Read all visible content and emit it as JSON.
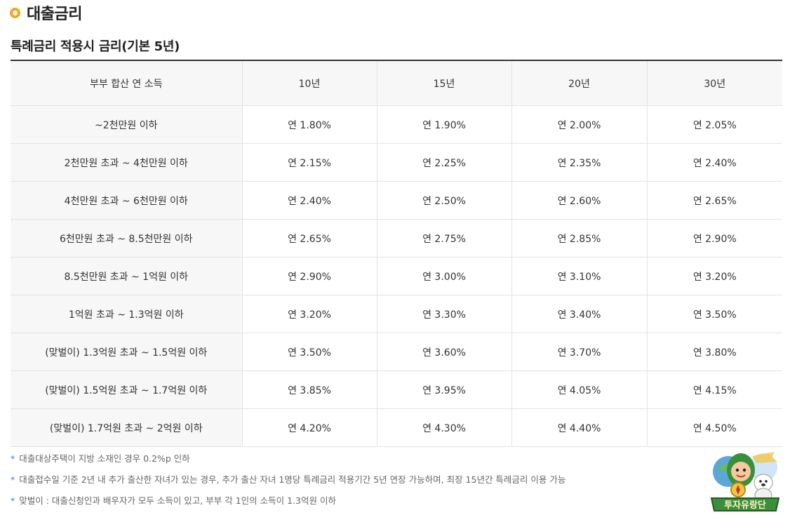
{
  "header": {
    "title": "대출금리",
    "subtitle": "특례금리 적용시 금리(기본 5년)"
  },
  "table": {
    "columns": [
      "부부 합산 연 소득",
      "10년",
      "15년",
      "20년",
      "30년"
    ],
    "rows": [
      [
        "~2천만원 이하",
        "연 1.80%",
        "연 1.90%",
        "연 2.00%",
        "연 2.05%"
      ],
      [
        "2천만원 초과 ~ 4천만원 이하",
        "연 2.15%",
        "연 2.25%",
        "연 2.35%",
        "연 2.40%"
      ],
      [
        "4천만원 초과 ~ 6천만원 이하",
        "연 2.40%",
        "연 2.50%",
        "연 2.60%",
        "연 2.65%"
      ],
      [
        "6천만원 초과 ~ 8.5천만원 이하",
        "연 2.65%",
        "연 2.75%",
        "연 2.85%",
        "연 2.90%"
      ],
      [
        "8.5천만원 초과 ~ 1억원 이하",
        "연 2.90%",
        "연 3.00%",
        "연 3.10%",
        "연 3.20%"
      ],
      [
        "1억원 초과 ~ 1.3억원 이하",
        "연 3.20%",
        "연 3.30%",
        "연 3.40%",
        "연 3.50%"
      ],
      [
        "(맞벌이) 1.3억원 초과 ~ 1.5억원 이하",
        "연 3.50%",
        "연 3.60%",
        "연 3.70%",
        "연 3.80%"
      ],
      [
        "(맞벌이) 1.5억원 초과 ~ 1.7억원 이하",
        "연 3.85%",
        "연 3.95%",
        "연 4.05%",
        "연 4.15%"
      ],
      [
        "(맞벌이) 1.7억원 초과 ~ 2억원 이하",
        "연 4.20%",
        "연 4.30%",
        "연 4.40%",
        "연 4.50%"
      ]
    ]
  },
  "notes": [
    "대출대상주택이 지방 소재인 경우 0.2%p 인하",
    "대출접수일 기준 2년 내 추가 출산한 자녀가 있는 경우, 추가 출산 자녀 1명당 특례금리 적용기간 5년 연장 가능하며, 최장 15년간 특례금리 이용 가능",
    "맞벌이 : 대출신청인과 배우자가 모두 소득이 있고, 부부 각 1인의 소득이 1.3억원 이하"
  ],
  "note_marker": "*",
  "mascot": {
    "text": "투자유랑단",
    "icon": "mascot-logo-icon"
  },
  "colors": {
    "accent": "#f5a623",
    "note_marker": "#4a79d8",
    "header_bg": "#f7f7f7"
  }
}
